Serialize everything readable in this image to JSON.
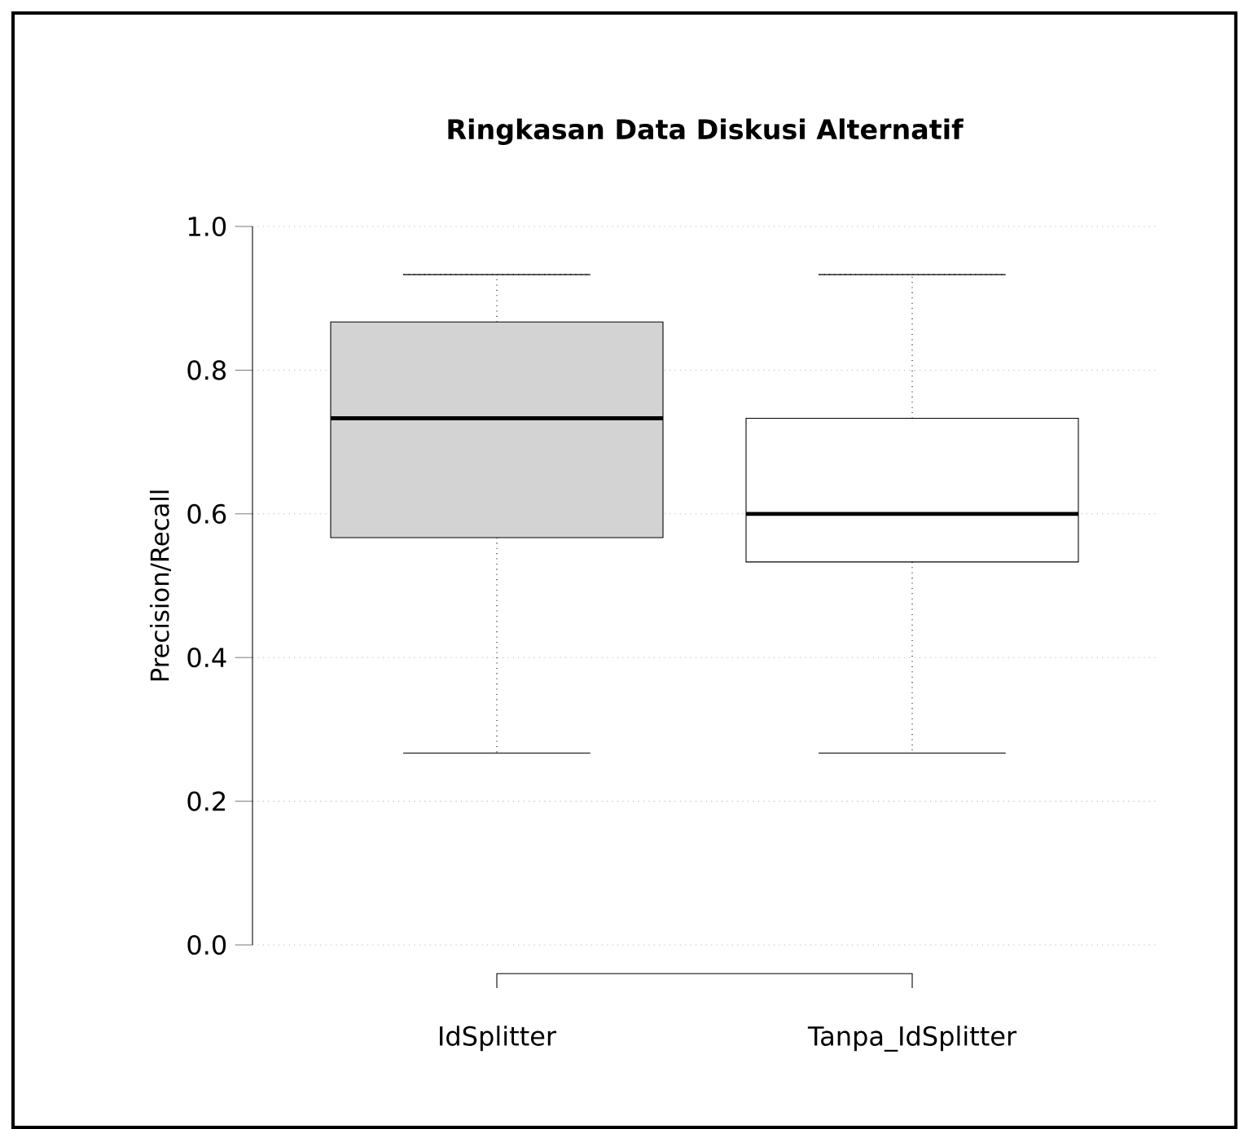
{
  "chart_data": {
    "type": "box",
    "title": "Ringkasan Data Diskusi Alternatif",
    "ylabel": "Precision/Recall",
    "categories": [
      "IdSplitter",
      "Tanpa_IdSplitter"
    ],
    "colors": [
      "#d3d3d3",
      "#ffffff"
    ],
    "boxes": [
      {
        "low": 0.267,
        "q1": 0.567,
        "median": 0.733,
        "q3": 0.867,
        "high": 0.933
      },
      {
        "low": 0.267,
        "q1": 0.533,
        "median": 0.6,
        "q3": 0.733,
        "high": 0.933
      }
    ],
    "ylim": [
      0,
      1
    ],
    "yticks": [
      {
        "value": 0,
        "label": "0.0"
      },
      0.2,
      0.4,
      0.6,
      0.8,
      {
        "value": 1,
        "label": "1.0"
      }
    ],
    "grid": "y"
  }
}
